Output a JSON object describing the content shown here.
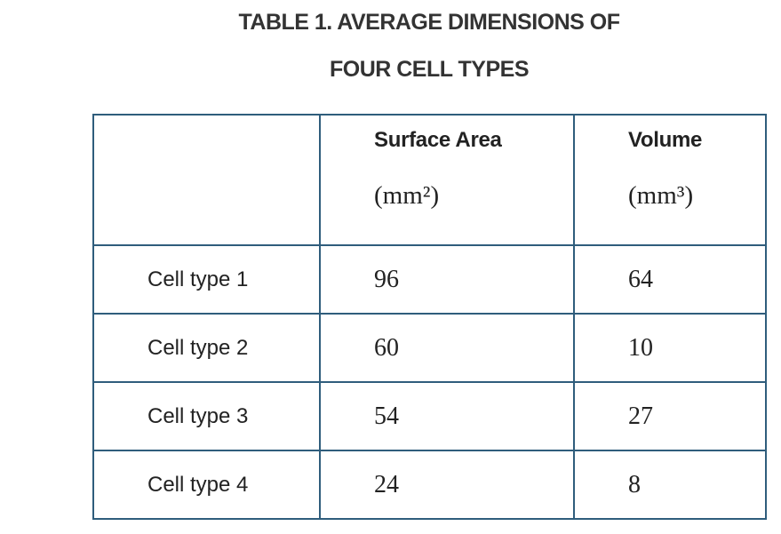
{
  "header": {
    "title_lines": [
      "TABLE 1. AVERAGE DIMENSIONS OF",
      "FOUR CELL TYPES"
    ]
  },
  "table": {
    "columns": [
      {
        "name": "Surface Area",
        "unit": "(mm²)"
      },
      {
        "name": "Volume",
        "unit": "(mm³)"
      }
    ],
    "rows": [
      [
        "Cell type 1",
        96,
        64
      ],
      [
        "Cell type 2",
        60,
        10
      ],
      [
        "Cell type 3",
        54,
        27
      ],
      [
        "Cell type 4",
        24,
        8
      ]
    ]
  }
}
